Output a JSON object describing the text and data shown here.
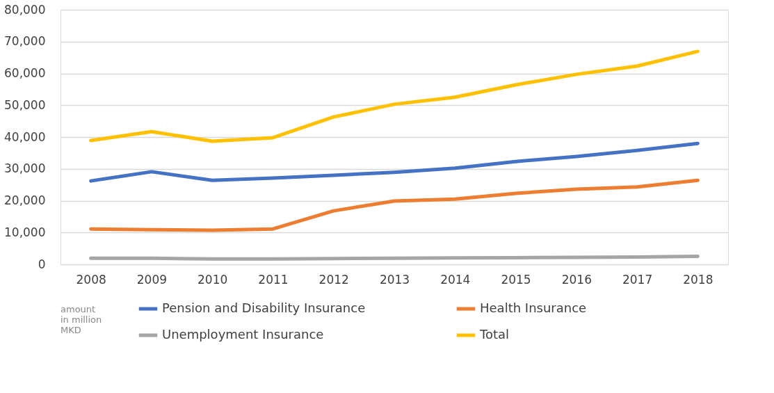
{
  "chart_data": {
    "type": "line",
    "categories": [
      "2008",
      "2009",
      "2010",
      "2011",
      "2012",
      "2013",
      "2014",
      "2015",
      "2016",
      "2017",
      "2018"
    ],
    "series": [
      {
        "name": "Pension and Disability Insurance",
        "color": "#4472c4",
        "values": [
          26200,
          29100,
          26400,
          27100,
          28000,
          28900,
          30200,
          32300,
          33900,
          35800,
          38000
        ]
      },
      {
        "name": "Health Insurance",
        "color": "#ed7d31",
        "values": [
          11100,
          10900,
          10700,
          11100,
          16800,
          19900,
          20500,
          22300,
          23600,
          24300,
          26400
        ]
      },
      {
        "name": "Unemployment Insurance",
        "color": "#a5a5a5",
        "values": [
          1900,
          1900,
          1700,
          1700,
          1800,
          1900,
          2000,
          2100,
          2200,
          2300,
          2500
        ]
      },
      {
        "name": "Total",
        "color": "#ffc000",
        "values": [
          38900,
          41700,
          38700,
          39800,
          46300,
          50300,
          52500,
          56400,
          59700,
          62300,
          66900
        ]
      }
    ],
    "ylim": [
      0,
      80000
    ],
    "yticks": [
      0,
      {
        "value": 10000,
        "label": "10,000"
      },
      {
        "value": 20000,
        "label": "20,000"
      },
      {
        "value": 30000,
        "label": "30,000"
      },
      {
        "value": 40000,
        "label": "40,000"
      },
      {
        "value": 50000,
        "label": "50,000"
      },
      {
        "value": 60000,
        "label": "60,000"
      },
      {
        "value": 70000,
        "label": "70,000"
      },
      {
        "value": 80000,
        "label": "80,000"
      }
    ],
    "grid": "y",
    "legend": "bottom",
    "legend_title": "amount in million MKD",
    "marker": "none",
    "line_style": "solid"
  }
}
